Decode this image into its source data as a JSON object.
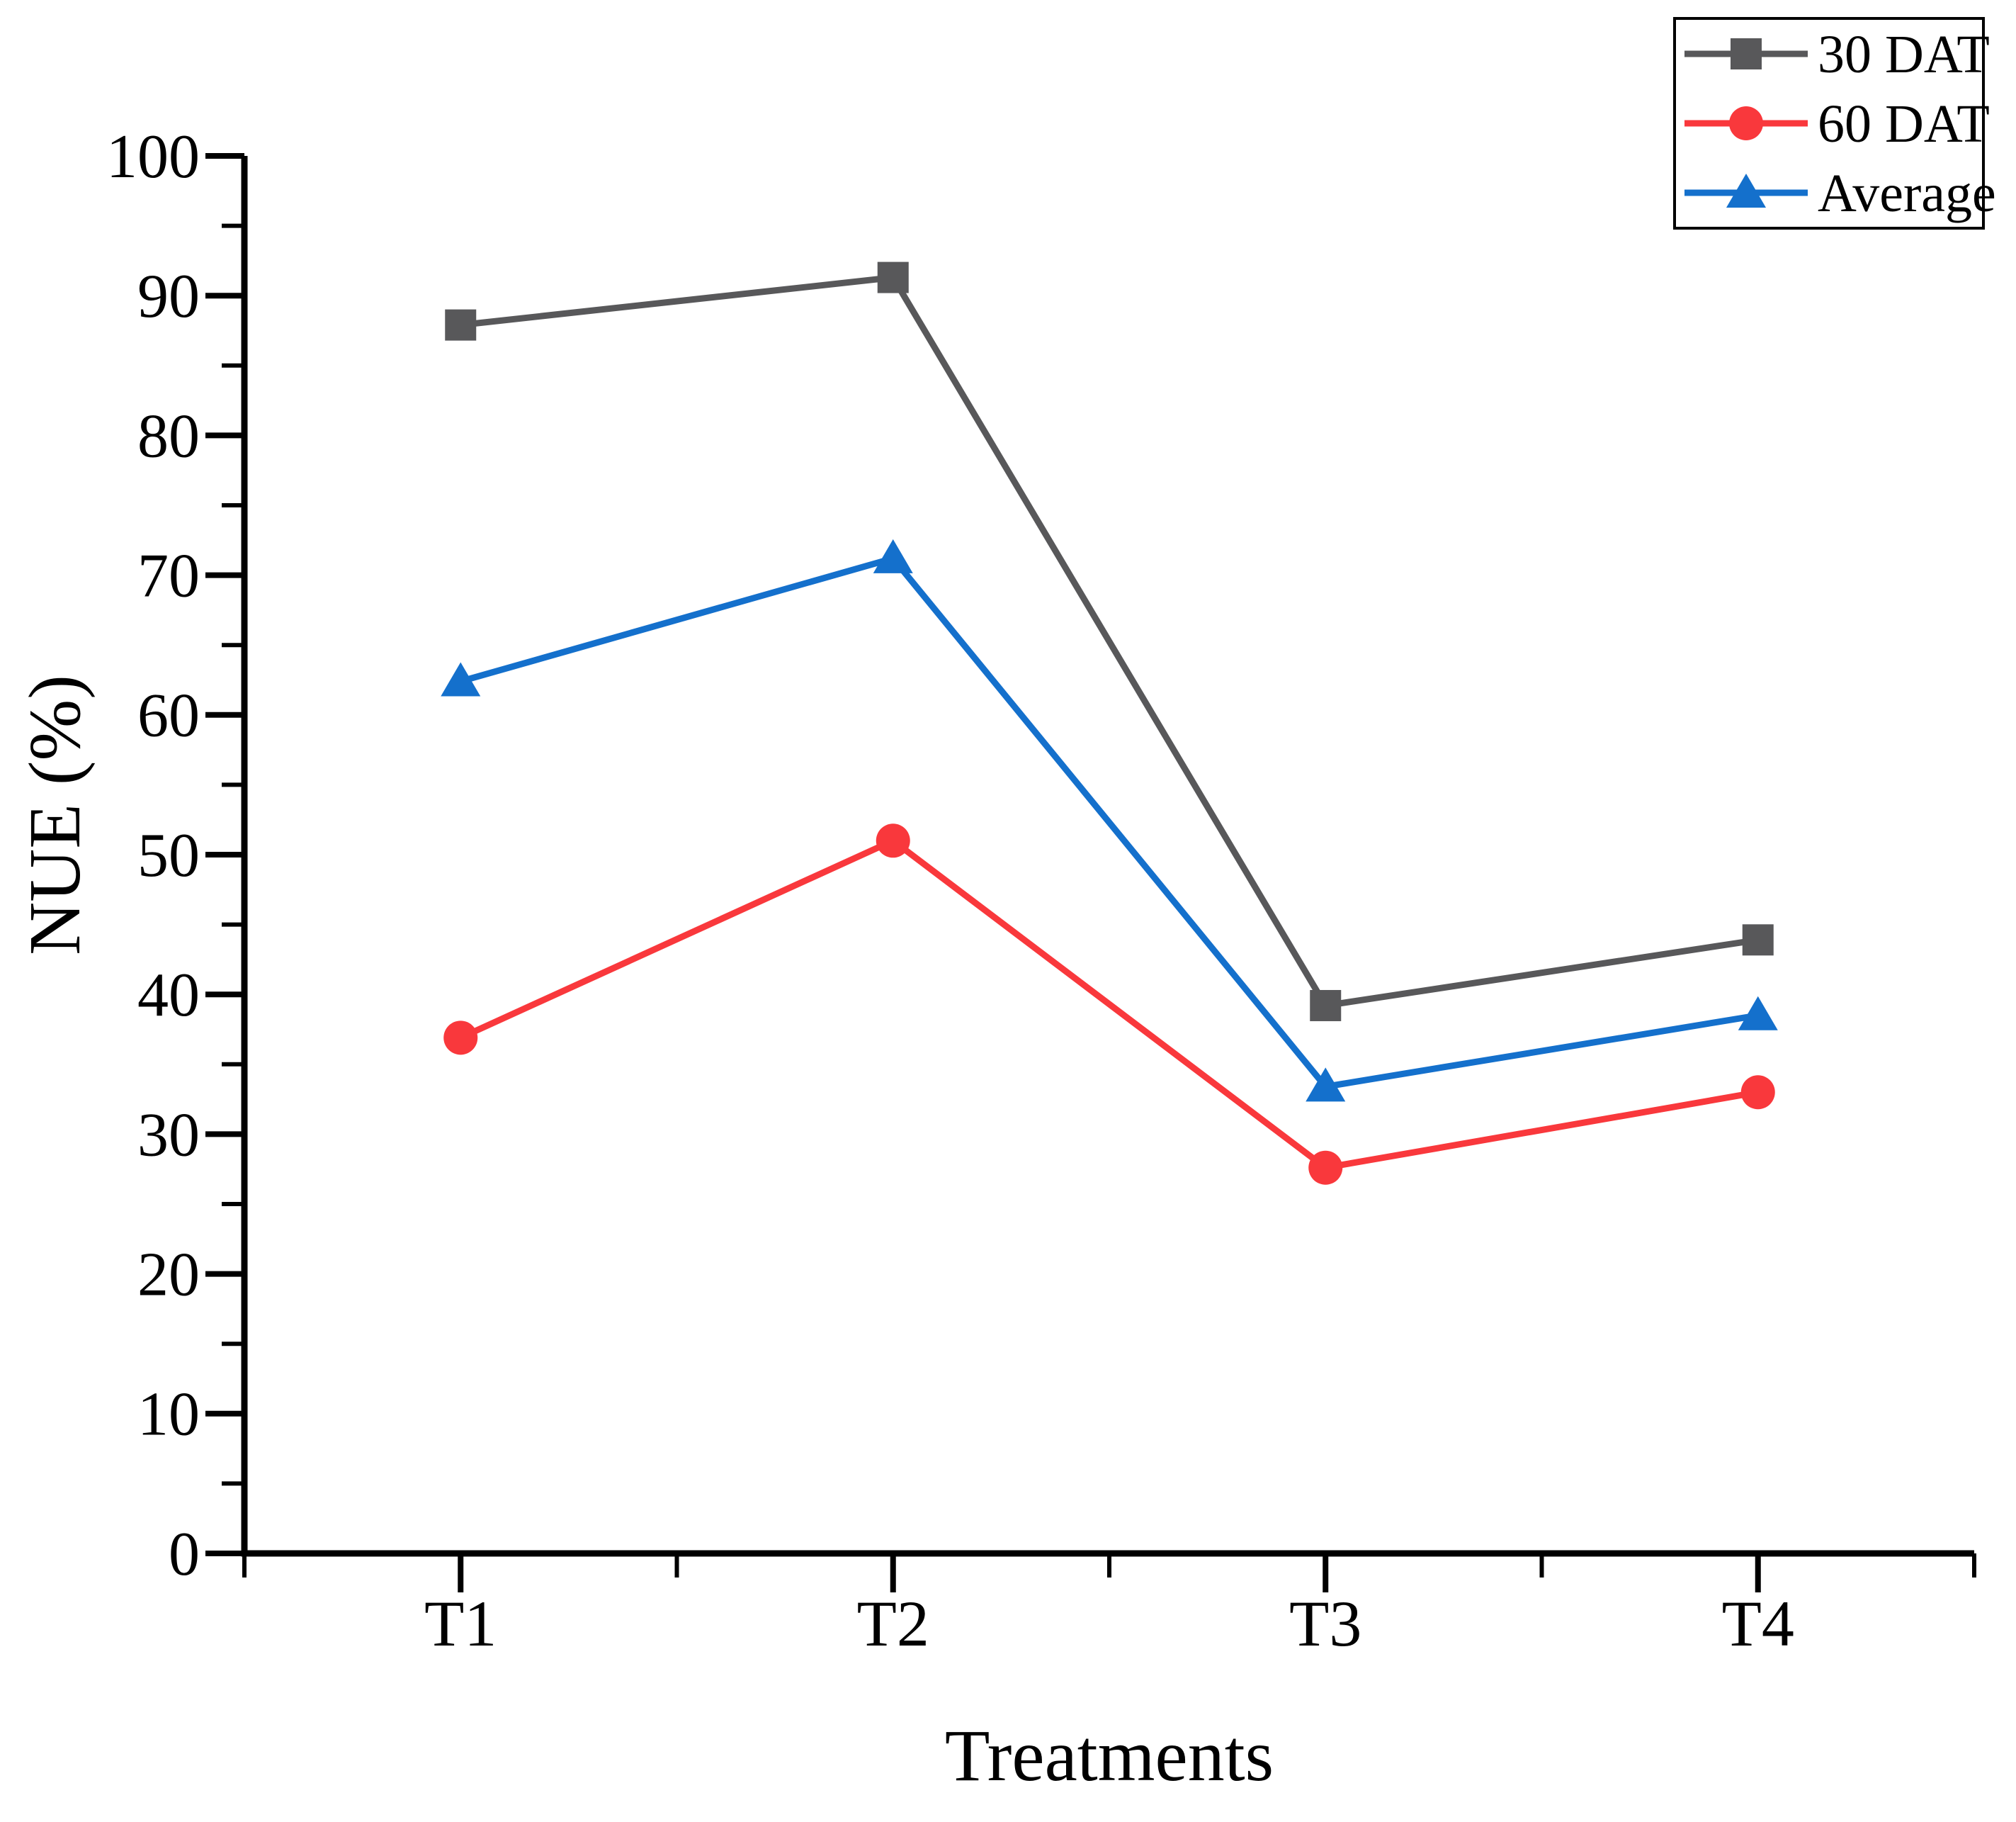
{
  "chart_data": {
    "type": "line",
    "categories": [
      "T1",
      "T2",
      "T3",
      "T4"
    ],
    "series": [
      {
        "name": "30 DAT",
        "color": "#58585A",
        "marker": "square",
        "values": [
          87.9,
          91.3,
          39.2,
          43.9
        ]
      },
      {
        "name": "60 DAT",
        "color": "#F9383C",
        "marker": "circle",
        "values": [
          36.9,
          51.0,
          27.6,
          33.0
        ]
      },
      {
        "name": "Average",
        "color": "#1470CC",
        "marker": "triangle",
        "values": [
          62.4,
          71.2,
          33.4,
          38.5
        ]
      }
    ],
    "title": "",
    "xlabel": "Treatments",
    "ylabel": "NUE (%)",
    "ylim": [
      0,
      100
    ],
    "y_major_step": 10,
    "y_minor_step": 5,
    "y_tick_labels": [
      "0",
      "10",
      "20",
      "30",
      "40",
      "50",
      "60",
      "70",
      "80",
      "90",
      "100"
    ],
    "grid": false,
    "legend_position": "top-right"
  },
  "legend": {
    "items": [
      {
        "label": "30 DAT"
      },
      {
        "label": "60 DAT"
      },
      {
        "label": "Average"
      }
    ]
  },
  "axes": {
    "x_title": "Treatments",
    "y_title": "NUE (%)"
  },
  "colors": {
    "axis": "#000000",
    "background": "#ffffff",
    "series_30_dat": "#58585A",
    "series_60_dat": "#F9383C",
    "series_average": "#1470CC"
  }
}
